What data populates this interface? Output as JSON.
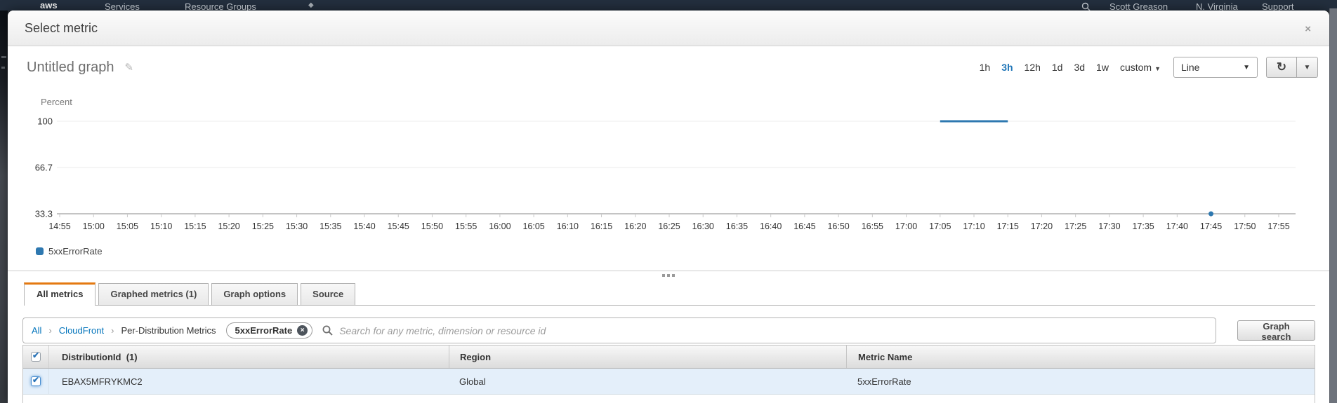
{
  "colors": {
    "nav_bg": "#232f3e",
    "accent_orange": "#e47911",
    "link_blue": "#0073bb",
    "row_highlight": "#e4effa"
  },
  "nav": {
    "logo": "aws",
    "services": "Services",
    "resource_groups": "Resource Groups",
    "user": "Scott Greason",
    "region": "N. Virginia",
    "support": "Support"
  },
  "modal": {
    "title": "Select metric",
    "close_label": "×"
  },
  "graph_header": {
    "title": "Untitled graph",
    "time_ranges": [
      {
        "label": "1h"
      },
      {
        "label": "3h"
      },
      {
        "label": "12h"
      },
      {
        "label": "1d"
      },
      {
        "label": "3d"
      },
      {
        "label": "1w"
      }
    ],
    "active_range": "3h",
    "custom_label": "custom",
    "display_type": "Line"
  },
  "chart_data": {
    "type": "line",
    "title": "Untitled graph",
    "ylabel": "Percent",
    "ylim": [
      33.3,
      100
    ],
    "yticks": [
      100,
      66.7,
      33.3
    ],
    "grid": true,
    "legend_position": "bottom-left",
    "x_ticks": [
      "14:55",
      "15:00",
      "15:05",
      "15:10",
      "15:15",
      "15:20",
      "15:25",
      "15:30",
      "15:35",
      "15:40",
      "15:45",
      "15:50",
      "15:55",
      "16:00",
      "16:05",
      "16:10",
      "16:15",
      "16:20",
      "16:25",
      "16:30",
      "16:35",
      "16:40",
      "16:45",
      "16:50",
      "16:55",
      "17:00",
      "17:05",
      "17:10",
      "17:15",
      "17:20",
      "17:25",
      "17:30",
      "17:35",
      "17:40",
      "17:45",
      "17:50",
      "17:55"
    ],
    "series": [
      {
        "name": "5xxErrorRate",
        "color": "#2e78b0",
        "points": [
          {
            "x": "17:05",
            "y": 100
          },
          {
            "x": "17:10",
            "y": 100
          },
          {
            "x": "17:15",
            "y": 100
          },
          {
            "x": "17:45",
            "y": 33.3
          }
        ]
      }
    ]
  },
  "tabs": [
    {
      "label": "All metrics",
      "active": true
    },
    {
      "label": "Graphed metrics (1)",
      "active": false
    },
    {
      "label": "Graph options",
      "active": false
    },
    {
      "label": "Source",
      "active": false
    }
  ],
  "browse": {
    "breadcrumbs": [
      {
        "label": "All"
      },
      {
        "label": "CloudFront"
      }
    ],
    "current": "Per-Distribution Metrics",
    "filter_tag": "5xxErrorRate",
    "filter_tag_close": "×",
    "search_placeholder": "Search for any metric, dimension or resource id",
    "graph_search_label": "Graph search"
  },
  "table": {
    "select_all_checked": true,
    "columns": [
      "DistributionId  (1)",
      "Region",
      "Metric Name"
    ],
    "rows": [
      {
        "checked": true,
        "distribution_id": "EBAX5MFRYKMC2",
        "region": "Global",
        "metric_name": "5xxErrorRate"
      }
    ]
  }
}
